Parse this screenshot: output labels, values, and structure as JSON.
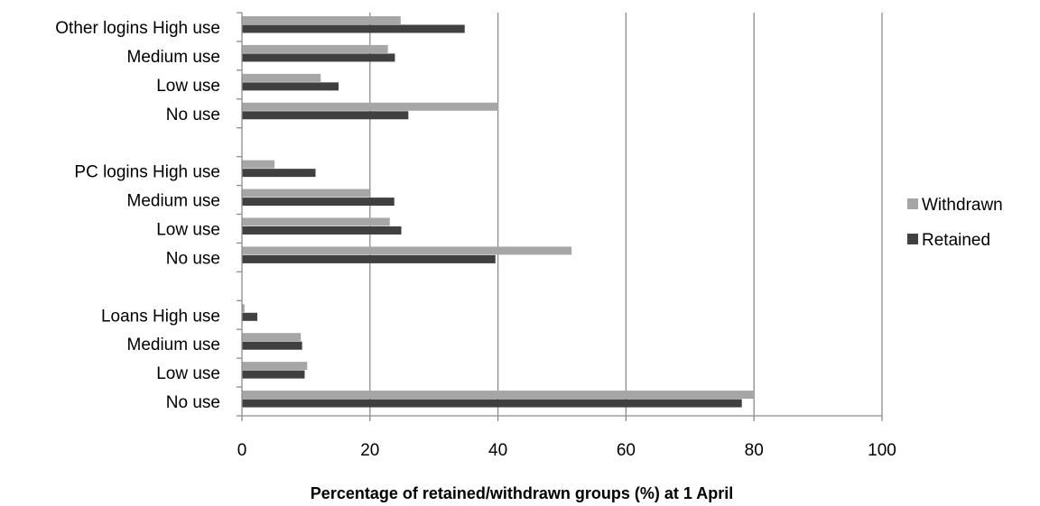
{
  "chart_data": {
    "type": "bar",
    "orientation": "horizontal",
    "categories": [
      "Other logins High use",
      "Medium use",
      "Low use",
      "No use",
      "",
      "PC logins High use",
      "Medium use",
      "Low use",
      "No use",
      "",
      "Loans High use",
      "Medium use",
      "Low use",
      "No use"
    ],
    "series": [
      {
        "name": "Withdrawn",
        "color": "#a6a6a6",
        "values": [
          24.8,
          22.8,
          12.3,
          40.1,
          null,
          5.1,
          19.9,
          23.1,
          51.5,
          null,
          0.4,
          9.2,
          10.2,
          80.0
        ]
      },
      {
        "name": "Retained",
        "color": "#404040",
        "values": [
          34.8,
          23.9,
          15.1,
          26.0,
          null,
          11.5,
          23.8,
          24.9,
          39.6,
          null,
          2.4,
          9.4,
          9.8,
          78.1
        ]
      }
    ],
    "xlabel": "Percentage of retained/withdrawn groups (%) at 1 April",
    "ylabel": "",
    "xlim": [
      0,
      100
    ],
    "ticks": [
      "0",
      "20",
      "40",
      "60",
      "80",
      "100"
    ],
    "grid": true,
    "legend": {
      "position": "right",
      "entries": [
        "Withdrawn",
        "Retained"
      ]
    }
  }
}
